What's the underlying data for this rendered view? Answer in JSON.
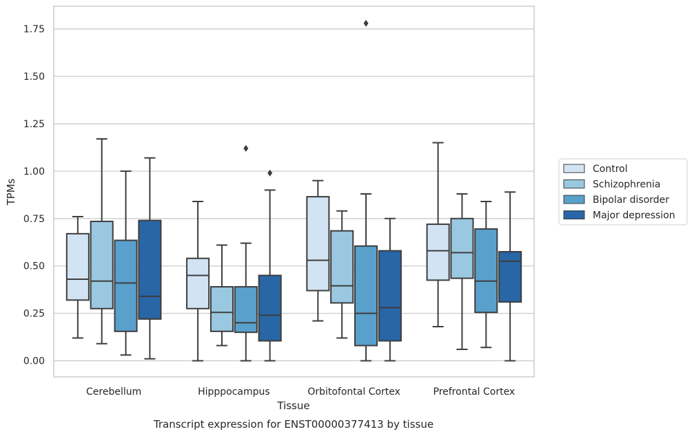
{
  "chart_data": {
    "type": "box",
    "title": "Transcript expression for ENST00000377413 by tissue",
    "xlabel": "Tissue",
    "ylabel": "TPMs",
    "ylim": [
      -0.085,
      1.87
    ],
    "yticks": [
      "0.00",
      "0.25",
      "0.50",
      "0.75",
      "1.00",
      "1.25",
      "1.50",
      "1.75"
    ],
    "categories": [
      "Cerebellum",
      "Hipppocampus",
      "Orbitofontal Cortex",
      "Prefrontal Cortex"
    ],
    "grid": true,
    "legend_position": "right",
    "series": [
      {
        "name": "Control",
        "color": "#d2e3f3",
        "boxes": [
          {
            "whislo": 0.12,
            "q1": 0.32,
            "med": 0.43,
            "q3": 0.67,
            "whishi": 0.76,
            "fliers": []
          },
          {
            "whislo": 0.0,
            "q1": 0.275,
            "med": 0.45,
            "q3": 0.54,
            "whishi": 0.84,
            "fliers": []
          },
          {
            "whislo": 0.21,
            "q1": 0.37,
            "med": 0.53,
            "q3": 0.865,
            "whishi": 0.95,
            "fliers": []
          },
          {
            "whislo": 0.18,
            "q1": 0.425,
            "med": 0.58,
            "q3": 0.72,
            "whishi": 1.15,
            "fliers": []
          }
        ]
      },
      {
        "name": "Schizophrenia",
        "color": "#9ac8e0",
        "boxes": [
          {
            "whislo": 0.09,
            "q1": 0.275,
            "med": 0.42,
            "q3": 0.735,
            "whishi": 1.17,
            "fliers": []
          },
          {
            "whislo": 0.08,
            "q1": 0.155,
            "med": 0.255,
            "q3": 0.39,
            "whishi": 0.61,
            "fliers": []
          },
          {
            "whislo": 0.12,
            "q1": 0.305,
            "med": 0.395,
            "q3": 0.685,
            "whishi": 0.79,
            "fliers": []
          },
          {
            "whislo": 0.06,
            "q1": 0.435,
            "med": 0.57,
            "q3": 0.75,
            "whishi": 0.88,
            "fliers": []
          }
        ]
      },
      {
        "name": "Bipolar disorder",
        "color": "#5aa0cd",
        "boxes": [
          {
            "whislo": 0.03,
            "q1": 0.155,
            "med": 0.41,
            "q3": 0.635,
            "whishi": 1.0,
            "fliers": []
          },
          {
            "whislo": 0.0,
            "q1": 0.15,
            "med": 0.2,
            "q3": 0.39,
            "whishi": 0.62,
            "fliers": [
              1.12
            ]
          },
          {
            "whislo": 0.0,
            "q1": 0.08,
            "med": 0.25,
            "q3": 0.605,
            "whishi": 0.88,
            "fliers": [
              1.78
            ]
          },
          {
            "whislo": 0.07,
            "q1": 0.255,
            "med": 0.42,
            "q3": 0.695,
            "whishi": 0.84,
            "fliers": []
          }
        ]
      },
      {
        "name": "Major depression",
        "color": "#2866a6",
        "boxes": [
          {
            "whislo": 0.01,
            "q1": 0.22,
            "med": 0.34,
            "q3": 0.74,
            "whishi": 1.07,
            "fliers": []
          },
          {
            "whislo": 0.0,
            "q1": 0.105,
            "med": 0.24,
            "q3": 0.45,
            "whishi": 0.9,
            "fliers": [
              0.99
            ]
          },
          {
            "whislo": 0.0,
            "q1": 0.105,
            "med": 0.28,
            "q3": 0.58,
            "whishi": 0.75,
            "fliers": []
          },
          {
            "whislo": 0.0,
            "q1": 0.31,
            "med": 0.525,
            "q3": 0.575,
            "whishi": 0.89,
            "fliers": []
          }
        ]
      }
    ]
  }
}
